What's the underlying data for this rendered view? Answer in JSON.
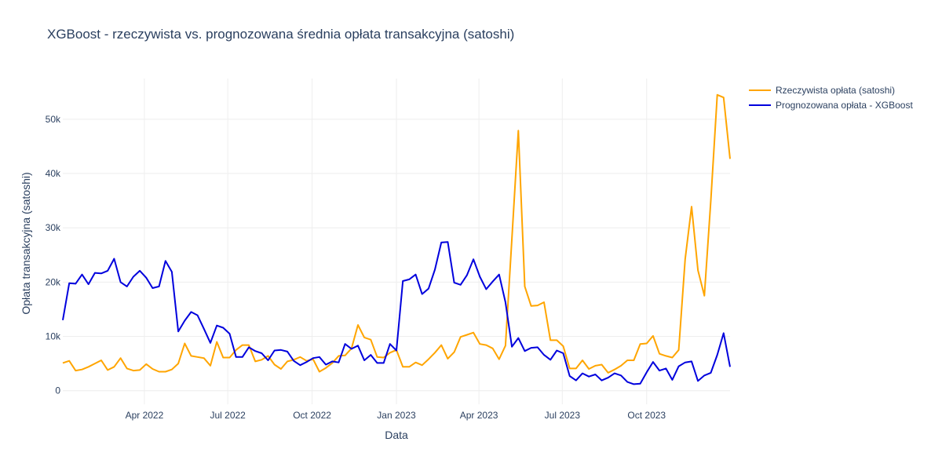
{
  "chart_data": {
    "type": "line",
    "title": "XGBoost - rzeczywista vs. prognozowana średnia opłata transakcyjna (satoshi)",
    "xlabel": "Data",
    "ylabel": "Opłata transakcyjna (satoshi)",
    "x_ticks": [
      {
        "label": "Apr 2022",
        "date": "2022-04-01"
      },
      {
        "label": "Jul 2022",
        "date": "2022-07-01"
      },
      {
        "label": "Oct 2022",
        "date": "2022-10-01"
      },
      {
        "label": "Jan 2023",
        "date": "2023-01-01"
      },
      {
        "label": "Apr 2023",
        "date": "2023-04-01"
      },
      {
        "label": "Jul 2023",
        "date": "2023-07-01"
      },
      {
        "label": "Oct 2023",
        "date": "2023-10-01"
      }
    ],
    "y_ticks": [
      {
        "label": "0",
        "value": 0
      },
      {
        "label": "10k",
        "value": 10000
      },
      {
        "label": "20k",
        "value": 20000
      },
      {
        "label": "30k",
        "value": 30000
      },
      {
        "label": "40k",
        "value": 40000
      },
      {
        "label": "50k",
        "value": 50000
      }
    ],
    "xlim": [
      "2022-01-02",
      "2023-12-31"
    ],
    "ylim": [
      -2500,
      57500
    ],
    "grid": true,
    "legend_position": "top-right",
    "series": [
      {
        "name": "Rzeczywista opłata (satoshi)",
        "color": "#FFA500",
        "x": [
          "2022-01-02",
          "2022-01-09",
          "2022-01-16",
          "2022-01-23",
          "2022-01-30",
          "2022-02-06",
          "2022-02-13",
          "2022-02-20",
          "2022-02-27",
          "2022-03-06",
          "2022-03-13",
          "2022-03-20",
          "2022-03-27",
          "2022-04-03",
          "2022-04-10",
          "2022-04-17",
          "2022-04-24",
          "2022-05-01",
          "2022-05-08",
          "2022-05-15",
          "2022-05-22",
          "2022-05-29",
          "2022-06-05",
          "2022-06-12",
          "2022-06-19",
          "2022-06-26",
          "2022-07-03",
          "2022-07-10",
          "2022-07-17",
          "2022-07-24",
          "2022-07-31",
          "2022-08-07",
          "2022-08-14",
          "2022-08-21",
          "2022-08-28",
          "2022-09-04",
          "2022-09-11",
          "2022-09-18",
          "2022-09-25",
          "2022-10-02",
          "2022-10-09",
          "2022-10-16",
          "2022-10-23",
          "2022-10-30",
          "2022-11-06",
          "2022-11-13",
          "2022-11-20",
          "2022-11-27",
          "2022-12-04",
          "2022-12-11",
          "2022-12-18",
          "2022-12-25",
          "2023-01-01",
          "2023-01-08",
          "2023-01-15",
          "2023-01-22",
          "2023-01-29",
          "2023-02-05",
          "2023-02-12",
          "2023-02-19",
          "2023-02-26",
          "2023-03-05",
          "2023-03-12",
          "2023-03-19",
          "2023-03-26",
          "2023-04-02",
          "2023-04-09",
          "2023-04-16",
          "2023-04-23",
          "2023-04-30",
          "2023-05-07",
          "2023-05-14",
          "2023-05-21",
          "2023-05-28",
          "2023-06-04",
          "2023-06-11",
          "2023-06-18",
          "2023-06-25",
          "2023-07-02",
          "2023-07-09",
          "2023-07-16",
          "2023-07-23",
          "2023-07-30",
          "2023-08-06",
          "2023-08-13",
          "2023-08-20",
          "2023-08-27",
          "2023-09-03",
          "2023-09-10",
          "2023-09-17",
          "2023-09-24",
          "2023-10-01",
          "2023-10-08",
          "2023-10-15",
          "2023-10-22",
          "2023-10-29",
          "2023-11-05",
          "2023-11-12",
          "2023-11-19",
          "2023-11-26",
          "2023-12-03",
          "2023-12-10",
          "2023-12-17",
          "2023-12-24",
          "2023-12-31"
        ],
        "values": [
          5100,
          5500,
          3700,
          3900,
          4400,
          5000,
          5600,
          3800,
          4400,
          6000,
          4100,
          3700,
          3800,
          4900,
          4000,
          3500,
          3500,
          3900,
          5000,
          8700,
          6400,
          6200,
          6000,
          4600,
          9000,
          6100,
          6100,
          7500,
          8400,
          8400,
          5400,
          5700,
          6400,
          4800,
          4000,
          5400,
          5700,
          6200,
          5500,
          5800,
          3500,
          4200,
          5100,
          6400,
          6500,
          7800,
          12100,
          9800,
          9400,
          6200,
          6100,
          7000,
          7500,
          4400,
          4400,
          5200,
          4700,
          5800,
          7000,
          8400,
          5900,
          7100,
          9900,
          10300,
          10700,
          8600,
          8400,
          7800,
          5800,
          8300,
          28000,
          47900,
          19200,
          15600,
          15700,
          16300,
          9300,
          9300,
          8200,
          4100,
          4100,
          5600,
          4000,
          4600,
          4800,
          3300,
          3900,
          4600,
          5600,
          5600,
          8600,
          8700,
          10100,
          6800,
          6400,
          6100,
          7500,
          24200,
          33900,
          22200,
          17500,
          35000,
          54500,
          54000,
          42700
        ]
      },
      {
        "name": "Prognozowana opłata - XGBoost",
        "color": "#0000DD",
        "x": [
          "2022-01-02",
          "2022-01-09",
          "2022-01-16",
          "2022-01-23",
          "2022-01-30",
          "2022-02-06",
          "2022-02-13",
          "2022-02-20",
          "2022-02-27",
          "2022-03-06",
          "2022-03-13",
          "2022-03-20",
          "2022-03-27",
          "2022-04-03",
          "2022-04-10",
          "2022-04-17",
          "2022-04-24",
          "2022-05-01",
          "2022-05-08",
          "2022-05-15",
          "2022-05-22",
          "2022-05-29",
          "2022-06-05",
          "2022-06-12",
          "2022-06-19",
          "2022-06-26",
          "2022-07-03",
          "2022-07-10",
          "2022-07-17",
          "2022-07-24",
          "2022-07-31",
          "2022-08-07",
          "2022-08-14",
          "2022-08-21",
          "2022-08-28",
          "2022-09-04",
          "2022-09-11",
          "2022-09-18",
          "2022-09-25",
          "2022-10-02",
          "2022-10-09",
          "2022-10-16",
          "2022-10-23",
          "2022-10-30",
          "2022-11-06",
          "2022-11-13",
          "2022-11-20",
          "2022-11-27",
          "2022-12-04",
          "2022-12-11",
          "2022-12-18",
          "2022-12-25",
          "2023-01-01",
          "2023-01-08",
          "2023-01-15",
          "2023-01-22",
          "2023-01-29",
          "2023-02-05",
          "2023-02-12",
          "2023-02-19",
          "2023-02-26",
          "2023-03-05",
          "2023-03-12",
          "2023-03-19",
          "2023-03-26",
          "2023-04-02",
          "2023-04-09",
          "2023-04-16",
          "2023-04-23",
          "2023-04-30",
          "2023-05-07",
          "2023-05-14",
          "2023-05-21",
          "2023-05-28",
          "2023-06-04",
          "2023-06-11",
          "2023-06-18",
          "2023-06-25",
          "2023-07-02",
          "2023-07-09",
          "2023-07-16",
          "2023-07-23",
          "2023-07-30",
          "2023-08-06",
          "2023-08-13",
          "2023-08-20",
          "2023-08-27",
          "2023-09-03",
          "2023-09-10",
          "2023-09-17",
          "2023-09-24",
          "2023-10-01",
          "2023-10-08",
          "2023-10-15",
          "2023-10-22",
          "2023-10-29",
          "2023-11-05",
          "2023-11-12",
          "2023-11-19",
          "2023-11-26",
          "2023-12-03",
          "2023-12-10",
          "2023-12-17",
          "2023-12-24",
          "2023-12-31"
        ],
        "values": [
          13000,
          19800,
          19700,
          21400,
          19600,
          21700,
          21600,
          22100,
          24300,
          20000,
          19200,
          21000,
          22100,
          20800,
          18900,
          19200,
          23900,
          21900,
          10900,
          12900,
          14500,
          13900,
          11400,
          8800,
          12000,
          11600,
          10500,
          6200,
          6200,
          8000,
          7300,
          6900,
          5600,
          7400,
          7500,
          7200,
          5500,
          4700,
          5300,
          6000,
          6200,
          4800,
          5400,
          5200,
          8600,
          7700,
          8300,
          5600,
          6600,
          5100,
          5100,
          8600,
          7400,
          20200,
          20500,
          21400,
          17800,
          18800,
          22300,
          27300,
          27400,
          19900,
          19500,
          21300,
          24200,
          21000,
          18700,
          20100,
          21400,
          16300,
          8100,
          9700,
          7300,
          7900,
          8000,
          6600,
          5700,
          7400,
          6900,
          2700,
          1900,
          3200,
          2600,
          3000,
          1900,
          2400,
          3200,
          2800,
          1600,
          1200,
          1300,
          3400,
          5300,
          3700,
          4100,
          2000,
          4500,
          5200,
          5400,
          1800,
          2800,
          3300,
          6600,
          10600,
          4400
        ]
      }
    ]
  }
}
